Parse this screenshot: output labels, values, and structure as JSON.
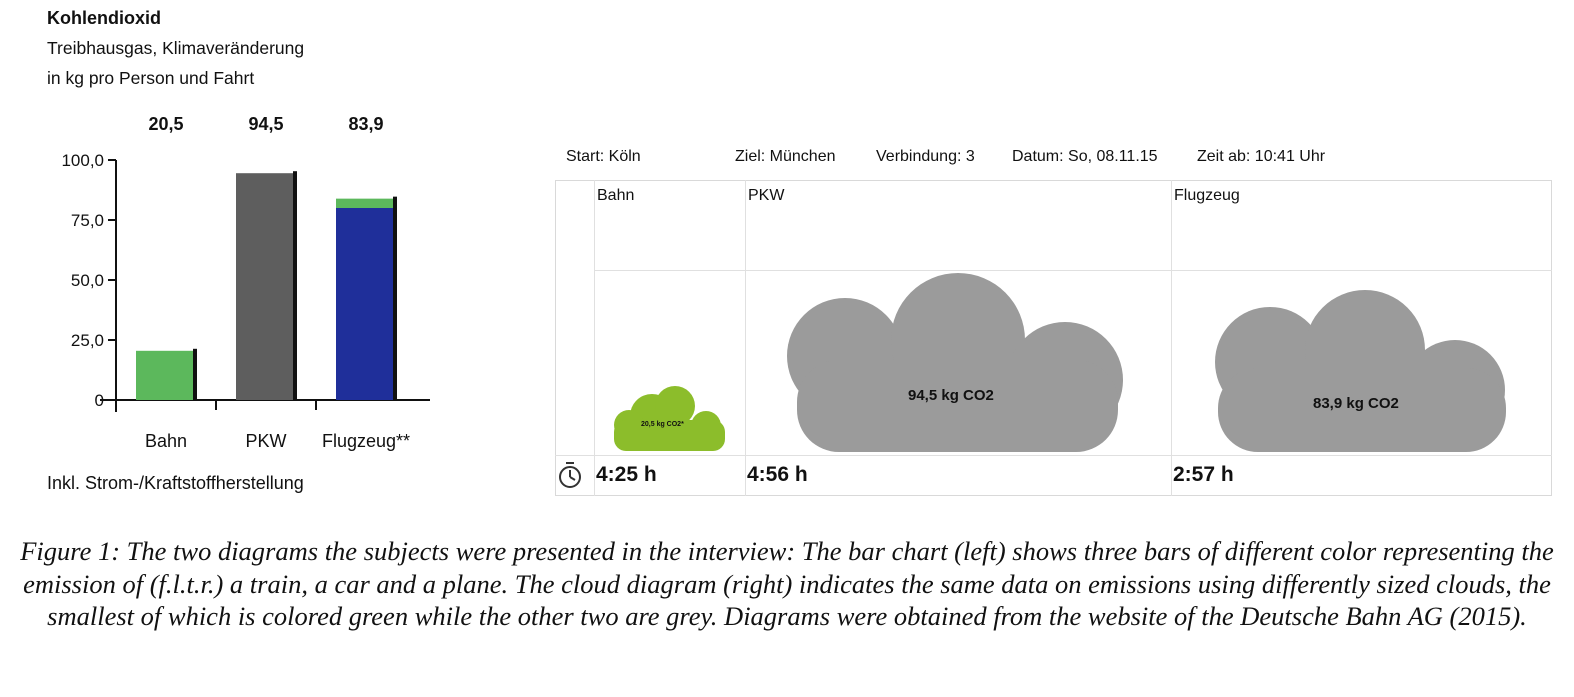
{
  "chart_data": [
    {
      "type": "bar",
      "title": "Kohlendioxid",
      "subtitle_lines": [
        "Treibhausgas, Klimaveränderung",
        "in kg pro Person und Fahrt"
      ],
      "categories": [
        "Bahn",
        "PKW",
        "Flugzeug**"
      ],
      "values": [
        20.5,
        94.5,
        83.9
      ],
      "value_labels": [
        "20,5",
        "94,5",
        "83,9"
      ],
      "plane_segments": [
        {
          "value": 80.0,
          "color": "#1f2f9a"
        },
        {
          "value": 3.9,
          "color": "#5cb85c"
        }
      ],
      "bar_colors": [
        "#5cb85c",
        "#5e5e5e",
        "#1f2f9a"
      ],
      "ylim": [
        0,
        100
      ],
      "ytick_values": [
        0,
        25,
        50,
        75,
        100
      ],
      "ytick_labels": [
        "0",
        "25,0",
        "50,0",
        "75,0",
        "100,0"
      ],
      "footnote": "Inkl. Strom-/Kraftstoffherstellung"
    },
    {
      "type": "cloud",
      "header": {
        "start": "Start: Köln",
        "ziel": "Ziel: München",
        "verbindung": "Verbindung: 3",
        "datum": "Datum: So, 08.11.15",
        "zeit": "Zeit ab: 10:41 Uhr"
      },
      "categories": [
        "Bahn",
        "PKW",
        "Flugzeug"
      ],
      "values": [
        20.5,
        94.5,
        83.9
      ],
      "cloud_labels": [
        "20,5 kg CO2*",
        "94,5 kg CO2",
        "83,9 kg CO2"
      ],
      "cloud_colors": [
        "#8cbd2b",
        "#9b9b9b",
        "#9b9b9b"
      ],
      "durations": [
        "4:25 h",
        "4:56 h",
        "2:57 h"
      ],
      "clock_icon": "clock-icon"
    }
  ],
  "caption": "Figure 1: The two diagrams the subjects were presented in the interview: The bar chart (left) shows three bars of different color representing the emission of (f.l.t.r.) a train, a car and a plane. The cloud diagram (right) indicates the same data on emissions using differently sized clouds, the smallest of which is colored green while the other two are grey. Diagrams were obtained from the website of the Deutsche Bahn AG (2015)."
}
